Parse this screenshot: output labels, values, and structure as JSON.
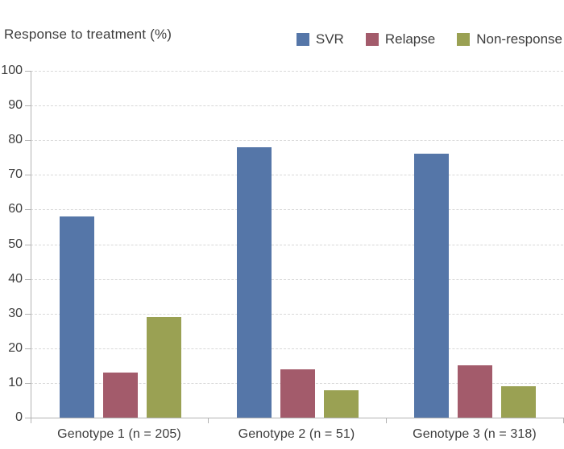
{
  "chart_data": {
    "type": "bar",
    "title": "Response to treatment (%)",
    "categories": [
      "Genotype 1 (n = 205)",
      "Genotype 2 (n = 51)",
      "Genotype 3 (n = 318)"
    ],
    "series": [
      {
        "name": "SVR",
        "color": "#5576a8",
        "values": [
          58,
          78,
          76
        ]
      },
      {
        "name": "Relapse",
        "color": "#a35b6b",
        "values": [
          13,
          14,
          15
        ]
      },
      {
        "name": "Non-response",
        "color": "#9aa153",
        "values": [
          29,
          8,
          9
        ]
      }
    ],
    "ylim": [
      0,
      100
    ],
    "ytick_step": 10,
    "ytick_labels": [
      "0",
      "10",
      "20",
      "30",
      "40",
      "50",
      "60",
      "70",
      "80",
      "90",
      "100"
    ],
    "grid": "horizontal-dashed",
    "legend_position": "top-right",
    "colors": {
      "text": "#3d3d3d",
      "axis": "#b2b2b2",
      "gridline": "#d8d8d8",
      "background": "#ffffff"
    }
  }
}
